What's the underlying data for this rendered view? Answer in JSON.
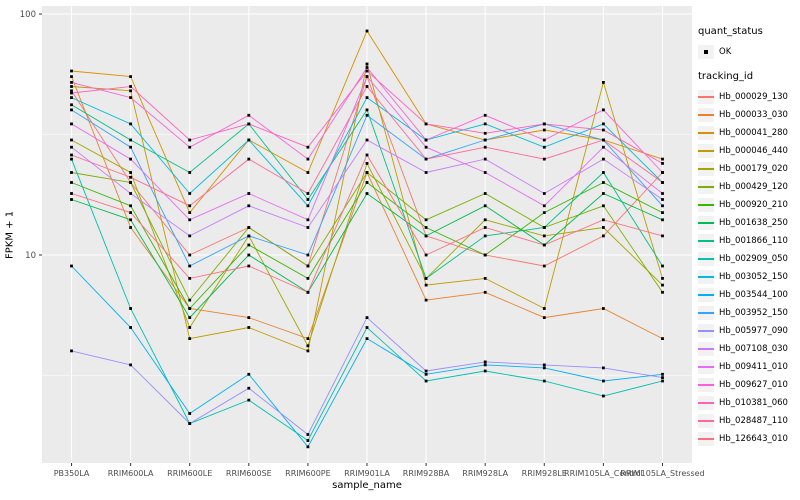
{
  "chart_data": {
    "type": "line",
    "title": "",
    "xlabel": "sample_name",
    "ylabel": "FPKM + 1",
    "y_scale": "log10",
    "ylim": [
      1.35,
      110
    ],
    "y_ticks": [
      10,
      100
    ],
    "y_minor_ticks": [
      3.1623,
      31.623
    ],
    "grid": true,
    "legend_position": "right",
    "panel_bg": "#EBEBEB",
    "grid_color": "#FFFFFF",
    "point_shape": "square",
    "point_color": "#000000",
    "categories": [
      "PB350LA",
      "RRIM600LA",
      "RRIM600LE",
      "RRIM600SE",
      "RRIM600PE",
      "RRIM901LA",
      "RRIM928BA",
      "RRIM928LA",
      "RRIM928LE",
      "RRIM105LA_Control",
      "RRIM105LA_Stressed"
    ],
    "series": [
      {
        "name": "Hb_000029_130",
        "color": "#F8766D",
        "values": [
          48,
          20,
          10,
          13,
          9,
          55,
          12,
          10,
          9,
          12,
          22
        ]
      },
      {
        "name": "Hb_000033_030",
        "color": "#EA8331",
        "values": [
          55,
          13,
          6,
          5.5,
          4.5,
          22,
          6.5,
          7,
          5.5,
          6,
          4.5
        ]
      },
      {
        "name": "Hb_000041_280",
        "color": "#D89000",
        "values": [
          58,
          55,
          15,
          30,
          22,
          85,
          35,
          30,
          33,
          30,
          25
        ]
      },
      {
        "name": "Hb_000046_440",
        "color": "#C09B00",
        "values": [
          50,
          48,
          4.5,
          5,
          4,
          62,
          7.5,
          8,
          6,
          52,
          8
        ]
      },
      {
        "name": "Hb_000179_020",
        "color": "#A3A500",
        "values": [
          30,
          22,
          5,
          12,
          4.2,
          24,
          8,
          14,
          12,
          13,
          7.5
        ]
      },
      {
        "name": "Hb_000429_120",
        "color": "#7CAE00",
        "values": [
          22,
          20,
          6.5,
          13,
          9,
          22,
          14,
          18,
          13,
          16,
          7
        ]
      },
      {
        "name": "Hb_000920_210",
        "color": "#39B600",
        "values": [
          20,
          16,
          6,
          11,
          8,
          20,
          13,
          10,
          15,
          20,
          15
        ]
      },
      {
        "name": "Hb_001638_250",
        "color": "#00BB4E",
        "values": [
          17,
          14,
          5.5,
          10,
          7,
          18,
          12,
          16,
          11,
          18,
          14
        ]
      },
      {
        "name": "Hb_001866_110",
        "color": "#00C087",
        "values": [
          42,
          30,
          22,
          35,
          17,
          40,
          8,
          12,
          13,
          22,
          9
        ]
      },
      {
        "name": "Hb_002909_050",
        "color": "#00C0AF",
        "values": [
          25,
          6,
          2,
          2.5,
          1.7,
          5,
          3,
          3.3,
          3,
          2.6,
          3
        ]
      },
      {
        "name": "Hb_003052_150",
        "color": "#00BCD8",
        "values": [
          45,
          35,
          18,
          30,
          16,
          45,
          30,
          35,
          28,
          35,
          20
        ]
      },
      {
        "name": "Hb_003544_100",
        "color": "#00B0F6",
        "values": [
          9,
          5,
          2.2,
          3.2,
          1.6,
          4.5,
          3.2,
          3.5,
          3.4,
          3,
          3.2
        ]
      },
      {
        "name": "Hb_003952_150",
        "color": "#35A2FF",
        "values": [
          40,
          28,
          9,
          12,
          10,
          38,
          25,
          30,
          35,
          30,
          16
        ]
      },
      {
        "name": "Hb_005977_090",
        "color": "#9590FF",
        "values": [
          4,
          3.5,
          2,
          2.8,
          1.8,
          5.5,
          3.3,
          3.6,
          3.5,
          3.4,
          3.1
        ]
      },
      {
        "name": "Hb_007108_030",
        "color": "#C77CFF",
        "values": [
          28,
          18,
          12,
          16,
          13,
          30,
          22,
          25,
          18,
          25,
          17
        ]
      },
      {
        "name": "Hb_009411_010",
        "color": "#E76BF3",
        "values": [
          35,
          25,
          14,
          18,
          14,
          55,
          28,
          22,
          16,
          28,
          18
        ]
      },
      {
        "name": "Hb_009627_010",
        "color": "#FA62DB",
        "values": [
          52,
          45,
          28,
          38,
          25,
          60,
          30,
          38,
          30,
          40,
          22
        ]
      },
      {
        "name": "Hb_010381_060",
        "color": "#FF62BC",
        "values": [
          47,
          50,
          30,
          35,
          28,
          58,
          35,
          32,
          35,
          33,
          24
        ]
      },
      {
        "name": "Hb_028487_110",
        "color": "#FF6A98",
        "values": [
          26,
          21,
          16,
          25,
          18,
          50,
          25,
          28,
          25,
          30,
          20
        ]
      },
      {
        "name": "Hb_126643_010",
        "color": "#FC717F",
        "values": [
          18,
          15,
          8,
          9,
          7,
          26,
          10,
          13,
          11,
          14,
          12
        ]
      }
    ]
  },
  "legend": {
    "quant_status_title": "quant_status",
    "quant_status_items": [
      {
        "label": "OK"
      }
    ],
    "tracking_title": "tracking_id"
  }
}
